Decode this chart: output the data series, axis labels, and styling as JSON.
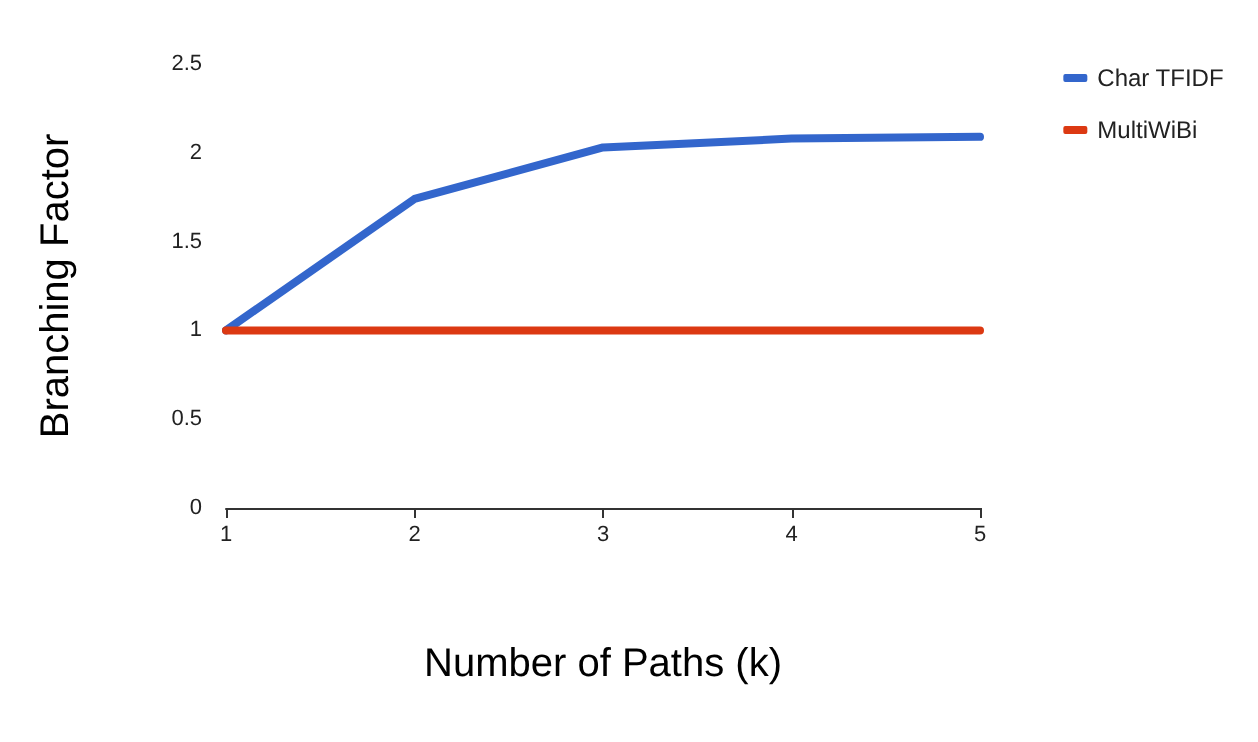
{
  "chart_data": {
    "type": "line",
    "xlabel": "Number of Paths (k)",
    "ylabel": "Branching Factor",
    "x": [
      1,
      2,
      3,
      4,
      5
    ],
    "xlim": [
      1,
      5
    ],
    "xticks": [
      1,
      2,
      3,
      4,
      5
    ],
    "ylim": [
      0,
      2.5
    ],
    "yticks": [
      0,
      0.5,
      1,
      1.5,
      2,
      2.5
    ],
    "series": [
      {
        "name": "Char TFIDF",
        "color": "#3366cc",
        "values": [
          1,
          1.74,
          2.03,
          2.08,
          2.09
        ]
      },
      {
        "name": "MultiWiBi",
        "color": "#dc3912",
        "values": [
          1,
          1,
          1,
          1,
          1
        ]
      }
    ],
    "legend": "top right",
    "grid": false,
    "marker": "none",
    "line_style": "solid"
  }
}
